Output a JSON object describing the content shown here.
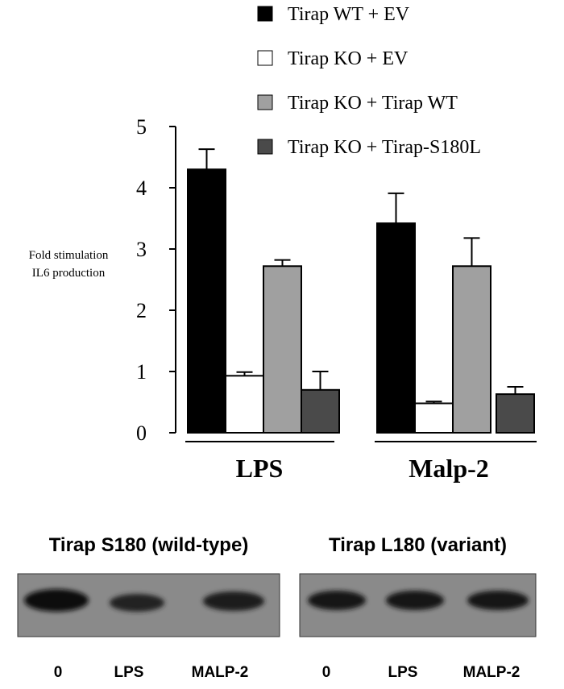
{
  "chart_data": {
    "type": "bar",
    "ylabel": [
      "Fold stimulation",
      "IL6 production"
    ],
    "categories": [
      "LPS",
      "Malp-2"
    ],
    "series": [
      {
        "name": "Tirap WT + EV",
        "color": "#000000",
        "values": [
          4.3,
          3.42
        ],
        "errors": [
          0.33,
          0.49
        ]
      },
      {
        "name": "Tirap KO + EV",
        "color": "#ffffff",
        "values": [
          0.93,
          0.48
        ],
        "errors": [
          0.06,
          0.03
        ]
      },
      {
        "name": "Tirap KO + Tirap WT",
        "color": "#a0a0a0",
        "values": [
          2.72,
          2.72
        ],
        "errors": [
          0.1,
          0.46
        ]
      },
      {
        "name": "Tirap KO + Tirap-S180L",
        "color": "#4a4a4a",
        "values": [
          0.7,
          0.63
        ],
        "errors": [
          0.3,
          0.12
        ]
      }
    ],
    "ylim": [
      0,
      5
    ],
    "yticks": [
      0,
      1,
      2,
      3,
      4,
      5
    ]
  },
  "blots": [
    {
      "title": "Tirap S180 (wild-type)",
      "lanes": [
        "0",
        "LPS",
        "MALP-2"
      ]
    },
    {
      "title": "Tirap L180 (variant)",
      "lanes": [
        "0",
        "LPS",
        "MALP-2"
      ]
    }
  ]
}
